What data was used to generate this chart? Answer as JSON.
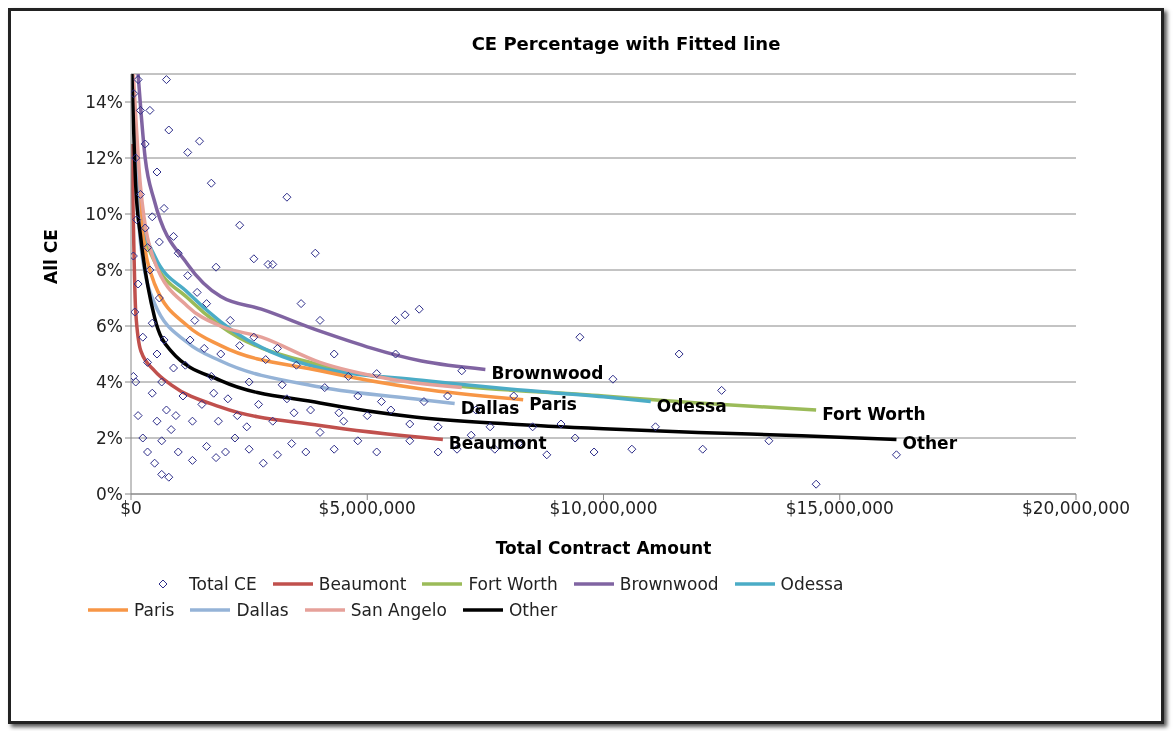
{
  "chart_data": {
    "type": "scatter",
    "title": "CE Percentage with Fitted line",
    "xlabel": "Total Contract Amount",
    "ylabel": "All CE",
    "xlim": [
      0,
      20000000
    ],
    "xticks": [
      {
        "value": 0,
        "label": "$0"
      },
      {
        "value": 5000000,
        "label": "$5,000,000"
      },
      {
        "value": 10000000,
        "label": "$10,000,000"
      },
      {
        "value": 15000000,
        "label": "$15,000,000"
      },
      {
        "value": 20000000,
        "label": "$20,000,000"
      }
    ],
    "ylim": [
      0,
      15
    ],
    "yticks": [
      {
        "value": 0,
        "label": "0%"
      },
      {
        "value": 2,
        "label": "2%"
      },
      {
        "value": 4,
        "label": "4%"
      },
      {
        "value": 6,
        "label": "6%"
      },
      {
        "value": 8,
        "label": "8%"
      },
      {
        "value": 10,
        "label": "10%"
      },
      {
        "value": 12,
        "label": "12%"
      },
      {
        "value": 14,
        "label": "14%"
      }
    ],
    "grid": "y",
    "legend": "bottom",
    "annotations": [
      {
        "text": "Brownwood",
        "x": 7500000,
        "y": 4.45
      },
      {
        "text": "Paris",
        "x": 8300000,
        "y": 3.37
      },
      {
        "text": "Dallas",
        "x": 6850000,
        "y": 3.23
      },
      {
        "text": "Odessa",
        "x": 11000000,
        "y": 3.3
      },
      {
        "text": "Fort Worth",
        "x": 14500000,
        "y": 3.0
      },
      {
        "text": "Other",
        "x": 16200000,
        "y": 1.95
      },
      {
        "text": "Beaumont",
        "x": 6600000,
        "y": 1.95
      }
    ],
    "series": [
      {
        "name": "Total CE",
        "type": "scatter",
        "marker": "diamond",
        "color": "#2e2e8a",
        "x": [
          750000,
          1700000,
          1450000,
          1200000,
          3300000,
          2300000,
          3900000,
          2600000,
          2900000,
          3000000,
          6100000,
          5800000,
          5600000,
          9500000,
          11600000,
          10200000,
          12500000,
          13500000,
          12100000,
          14500000,
          16200000,
          11100000,
          10600000,
          9400000,
          9800000,
          8800000,
          8500000,
          9100000,
          8100000,
          7300000,
          7200000,
          6900000,
          7700000,
          6500000,
          5900000,
          5200000,
          4800000,
          4300000,
          4000000,
          4500000,
          5000000,
          5500000,
          6200000,
          6500000,
          3700000,
          3400000,
          3100000,
          2800000,
          2500000,
          2200000,
          2000000,
          1800000,
          1600000,
          1300000,
          1000000,
          800000,
          650000,
          500000,
          350000,
          250000,
          150000,
          100000,
          50000,
          80000,
          120000,
          200000,
          300000,
          400000,
          600000,
          700000,
          900000,
          1100000,
          1300000,
          1500000,
          1700000,
          1900000,
          2100000,
          2300000,
          2500000,
          2700000,
          3000000,
          3200000,
          3500000,
          3600000,
          4000000,
          4300000,
          4600000,
          4800000,
          5200000,
          5600000,
          5300000,
          5900000,
          6700000,
          7000000,
          7600000,
          8200000,
          200000,
          300000,
          400000,
          550000,
          700000,
          900000,
          1000000,
          1200000,
          1400000,
          1600000,
          1800000,
          450000,
          550000,
          650000,
          750000,
          850000,
          950000,
          1150000,
          1250000,
          1350000,
          1550000,
          1750000,
          1850000,
          2050000,
          2250000,
          2450000,
          2600000,
          2850000,
          3100000,
          3300000,
          3450000,
          3800000,
          4100000,
          4400000,
          150000,
          250000,
          350000,
          450000,
          550000,
          650000,
          350000,
          450000,
          600000,
          50000,
          100000,
          60000,
          150000,
          800000
        ],
        "values": [
          14.8,
          11.1,
          12.6,
          12.2,
          10.6,
          9.6,
          8.6,
          8.4,
          8.2,
          8.2,
          6.6,
          6.4,
          6.2,
          5.6,
          5.0,
          4.1,
          3.7,
          1.9,
          1.6,
          0.35,
          1.4,
          2.4,
          1.6,
          2.0,
          1.5,
          1.4,
          2.4,
          2.5,
          3.5,
          3.0,
          2.1,
          1.6,
          1.6,
          1.5,
          1.9,
          1.5,
          1.9,
          1.6,
          2.2,
          2.6,
          2.8,
          3.0,
          3.3,
          2.4,
          1.5,
          1.8,
          1.4,
          1.1,
          1.6,
          2.0,
          1.5,
          1.3,
          1.7,
          1.2,
          1.5,
          0.6,
          0.7,
          1.1,
          1.5,
          2.0,
          2.8,
          4.0,
          4.2,
          6.5,
          9.8,
          10.7,
          9.5,
          8.0,
          7.0,
          5.5,
          4.5,
          3.5,
          2.6,
          3.2,
          4.2,
          5.0,
          6.2,
          5.3,
          4.0,
          3.2,
          2.6,
          3.9,
          4.6,
          6.8,
          6.2,
          5.0,
          4.2,
          3.5,
          4.3,
          5.0,
          3.3,
          2.5,
          3.5,
          4.4,
          2.4,
          1.8,
          13.7,
          12.5,
          13.7,
          11.5,
          10.2,
          9.2,
          8.6,
          7.8,
          7.2,
          6.8,
          8.1,
          6.1,
          5.0,
          4.0,
          3.0,
          2.3,
          2.8,
          4.6,
          5.5,
          6.2,
          5.2,
          3.6,
          2.6,
          3.4,
          2.8,
          2.4,
          5.6,
          4.8,
          5.2,
          3.4,
          2.9,
          3.0,
          3.8,
          2.9,
          7.5,
          5.6,
          4.7,
          3.6,
          2.6,
          1.9,
          8.8,
          9.9,
          9.0,
          8.5,
          12.0,
          14.3,
          14.8,
          13.0
        ]
      },
      {
        "name": "Beaumont",
        "type": "line",
        "marker": "none",
        "color": "#c0504d",
        "x": [
          20000,
          100000,
          210000,
          500000,
          850000,
          1900000,
          4000000,
          6600000
        ],
        "values": [
          12.5,
          6.5,
          5.1,
          4.4,
          3.9,
          3.1,
          2.45,
          1.95
        ]
      },
      {
        "name": "Fort Worth",
        "type": "line",
        "marker": "none",
        "color": "#9bbb59",
        "x": [
          50000,
          200000,
          500000,
          1200000,
          1900000,
          4000000,
          6150000,
          10000000,
          12000000,
          14500000
        ],
        "values": [
          14,
          10,
          8.3,
          7.0,
          6.0,
          4.6,
          4.0,
          3.5,
          3.25,
          3.0
        ]
      },
      {
        "name": "Brownwood",
        "type": "line",
        "marker": "none",
        "color": "#8064a2",
        "x": [
          150000,
          300000,
          490000,
          1200000,
          1900000,
          2760000,
          4030000,
          6150000,
          7500000
        ],
        "values": [
          15,
          12,
          10.5,
          8.2,
          7.05,
          6.6,
          5.8,
          4.75,
          4.45
        ]
      },
      {
        "name": "Odessa",
        "type": "line",
        "marker": "none",
        "color": "#4bacc6",
        "x": [
          50000,
          200000,
          500000,
          1200000,
          1900000,
          4000000,
          6150000,
          8000000,
          10000000,
          11000000
        ],
        "values": [
          14,
          10,
          8.5,
          7.2,
          6.15,
          4.5,
          4.06,
          3.75,
          3.47,
          3.3
        ]
      },
      {
        "name": "Paris",
        "type": "line",
        "marker": "none",
        "color": "#f79646",
        "x": [
          50000,
          200000,
          500000,
          1200000,
          1900000,
          4000000,
          6150000,
          8300000
        ],
        "values": [
          14,
          10,
          7.5,
          6.0,
          5.3,
          4.4,
          3.75,
          3.37
        ]
      },
      {
        "name": "Dallas",
        "type": "line",
        "marker": "none",
        "color": "#95b3d7",
        "x": [
          50000,
          200000,
          500000,
          1200000,
          1900000,
          4000000,
          6150000,
          6850000
        ],
        "values": [
          14,
          9,
          6.8,
          5.4,
          4.75,
          3.82,
          3.37,
          3.23
        ]
      },
      {
        "name": "San Angelo",
        "type": "line",
        "marker": "none",
        "color": "#e6a19a",
        "x": [
          50000,
          200000,
          500000,
          1200000,
          1900000,
          2760000,
          4000000,
          5500000,
          7000000
        ],
        "values": [
          15,
          11,
          8.3,
          6.7,
          6.0,
          5.6,
          4.7,
          4.1,
          3.8
        ]
      },
      {
        "name": "Other",
        "type": "line",
        "marker": "none",
        "color": "#000000",
        "x": [
          20000,
          100000,
          210000,
          500000,
          850000,
          1900000,
          4000000,
          6000000,
          8000000,
          10000000,
          12000000,
          14200000,
          16200000
        ],
        "values": [
          15,
          11,
          9.1,
          6.3,
          5.1,
          4.05,
          3.25,
          2.75,
          2.5,
          2.33,
          2.2,
          2.08,
          1.95
        ]
      }
    ]
  }
}
